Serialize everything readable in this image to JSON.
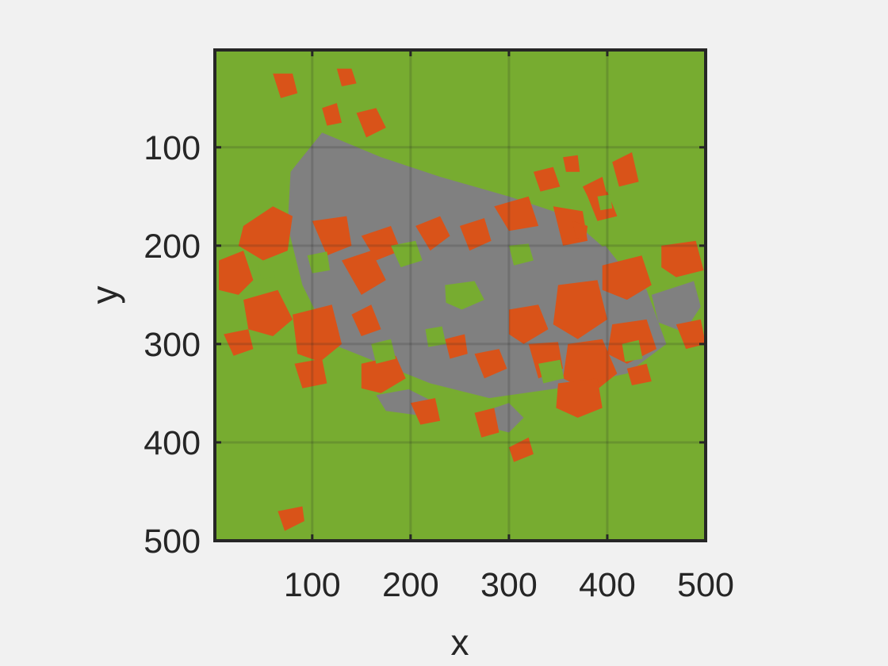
{
  "chart_data": {
    "type": "heatmap",
    "title": "",
    "xlabel": "x",
    "ylabel": "y",
    "xlim": [
      1,
      500
    ],
    "ylim": [
      1,
      500
    ],
    "y_reversed": true,
    "xticks": [
      100,
      200,
      300,
      400,
      500
    ],
    "xtick_labels": [
      "100",
      "200",
      "300",
      "400",
      "500"
    ],
    "yticks": [
      100,
      200,
      300,
      400,
      500
    ],
    "ytick_labels": [
      "100",
      "200",
      "300",
      "400",
      "500"
    ],
    "grid": true,
    "classes": [
      {
        "id": 1,
        "color": "#77ac30"
      },
      {
        "id": 2,
        "color": "#d95319"
      },
      {
        "id": 3,
        "color": "#808080"
      }
    ],
    "background_class": 1,
    "regions": [
      {
        "class": 3,
        "polygon": [
          [
            78,
            125
          ],
          [
            110,
            85
          ],
          [
            170,
            110
          ],
          [
            230,
            130
          ],
          [
            300,
            150
          ],
          [
            360,
            170
          ],
          [
            400,
            205
          ],
          [
            440,
            245
          ],
          [
            460,
            300
          ],
          [
            420,
            330
          ],
          [
            350,
            345
          ],
          [
            280,
            355
          ],
          [
            220,
            340
          ],
          [
            170,
            320
          ],
          [
            120,
            300
          ],
          [
            90,
            240
          ],
          [
            75,
            180
          ]
        ]
      },
      {
        "class": 3,
        "polygon": [
          [
            248,
            230
          ],
          [
            286,
            226
          ],
          [
            306,
            238
          ],
          [
            296,
            252
          ],
          [
            262,
            250
          ]
        ]
      },
      {
        "class": 3,
        "polygon": [
          [
            165,
            352
          ],
          [
            198,
            346
          ],
          [
            222,
            358
          ],
          [
            205,
            372
          ],
          [
            175,
            368
          ]
        ]
      },
      {
        "class": 3,
        "polygon": [
          [
            445,
            250
          ],
          [
            488,
            236
          ],
          [
            495,
            262
          ],
          [
            478,
            288
          ],
          [
            452,
            278
          ]
        ]
      },
      {
        "class": 3,
        "polygon": [
          [
            365,
            210
          ],
          [
            398,
            200
          ],
          [
            410,
            215
          ],
          [
            392,
            228
          ]
        ]
      },
      {
        "class": 3,
        "polygon": [
          [
            270,
            370
          ],
          [
            300,
            360
          ],
          [
            315,
            375
          ],
          [
            300,
            390
          ],
          [
            280,
            385
          ]
        ]
      },
      {
        "class": 2,
        "polygon": [
          [
            30,
            180
          ],
          [
            60,
            160
          ],
          [
            80,
            170
          ],
          [
            75,
            205
          ],
          [
            50,
            215
          ],
          [
            25,
            200
          ]
        ]
      },
      {
        "class": 2,
        "polygon": [
          [
            5,
            215
          ],
          [
            30,
            205
          ],
          [
            40,
            235
          ],
          [
            25,
            250
          ],
          [
            5,
            245
          ]
        ]
      },
      {
        "class": 2,
        "polygon": [
          [
            30,
            255
          ],
          [
            65,
            245
          ],
          [
            80,
            275
          ],
          [
            60,
            292
          ],
          [
            35,
            285
          ]
        ]
      },
      {
        "class": 2,
        "polygon": [
          [
            80,
            270
          ],
          [
            120,
            260
          ],
          [
            130,
            300
          ],
          [
            108,
            318
          ],
          [
            85,
            310
          ]
        ]
      },
      {
        "class": 2,
        "polygon": [
          [
            10,
            290
          ],
          [
            35,
            285
          ],
          [
            40,
            305
          ],
          [
            20,
            312
          ]
        ]
      },
      {
        "class": 2,
        "polygon": [
          [
            82,
            320
          ],
          [
            110,
            315
          ],
          [
            115,
            340
          ],
          [
            90,
            345
          ]
        ]
      },
      {
        "class": 2,
        "polygon": [
          [
            100,
            175
          ],
          [
            135,
            170
          ],
          [
            140,
            200
          ],
          [
            115,
            210
          ]
        ]
      },
      {
        "class": 2,
        "polygon": [
          [
            130,
            215
          ],
          [
            160,
            205
          ],
          [
            175,
            235
          ],
          [
            150,
            250
          ]
        ]
      },
      {
        "class": 2,
        "polygon": [
          [
            150,
            190
          ],
          [
            180,
            180
          ],
          [
            190,
            205
          ],
          [
            165,
            215
          ]
        ]
      },
      {
        "class": 2,
        "polygon": [
          [
            150,
            320
          ],
          [
            185,
            312
          ],
          [
            195,
            335
          ],
          [
            170,
            350
          ],
          [
            150,
            345
          ]
        ]
      },
      {
        "class": 2,
        "polygon": [
          [
            140,
            270
          ],
          [
            160,
            260
          ],
          [
            170,
            285
          ],
          [
            150,
            292
          ]
        ]
      },
      {
        "class": 2,
        "polygon": [
          [
            205,
            180
          ],
          [
            230,
            170
          ],
          [
            240,
            190
          ],
          [
            220,
            205
          ]
        ]
      },
      {
        "class": 2,
        "polygon": [
          [
            250,
            180
          ],
          [
            275,
            172
          ],
          [
            282,
            195
          ],
          [
            260,
            205
          ]
        ]
      },
      {
        "class": 2,
        "polygon": [
          [
            285,
            160
          ],
          [
            320,
            150
          ],
          [
            330,
            180
          ],
          [
            300,
            185
          ]
        ]
      },
      {
        "class": 2,
        "polygon": [
          [
            325,
            125
          ],
          [
            345,
            120
          ],
          [
            352,
            140
          ],
          [
            332,
            145
          ]
        ]
      },
      {
        "class": 2,
        "polygon": [
          [
            345,
            160
          ],
          [
            375,
            165
          ],
          [
            380,
            195
          ],
          [
            355,
            200
          ]
        ]
      },
      {
        "class": 2,
        "polygon": [
          [
            365,
            175
          ],
          [
            380,
            180
          ],
          [
            378,
            195
          ],
          [
            368,
            192
          ]
        ]
      },
      {
        "class": 2,
        "polygon": [
          [
            380,
            150
          ],
          [
            400,
            145
          ],
          [
            410,
            170
          ],
          [
            390,
            175
          ]
        ]
      },
      {
        "class": 2,
        "polygon": [
          [
            405,
            115
          ],
          [
            425,
            105
          ],
          [
            432,
            135
          ],
          [
            412,
            140
          ]
        ]
      },
      {
        "class": 2,
        "polygon": [
          [
            375,
            140
          ],
          [
            395,
            130
          ],
          [
            400,
            150
          ],
          [
            385,
            160
          ]
        ]
      },
      {
        "class": 2,
        "polygon": [
          [
            355,
            110
          ],
          [
            370,
            108
          ],
          [
            372,
            125
          ],
          [
            358,
            125
          ]
        ]
      },
      {
        "class": 2,
        "polygon": [
          [
            395,
            220
          ],
          [
            435,
            210
          ],
          [
            445,
            240
          ],
          [
            420,
            255
          ],
          [
            395,
            245
          ]
        ]
      },
      {
        "class": 2,
        "polygon": [
          [
            350,
            240
          ],
          [
            390,
            235
          ],
          [
            400,
            275
          ],
          [
            370,
            295
          ],
          [
            345,
            280
          ]
        ]
      },
      {
        "class": 2,
        "polygon": [
          [
            360,
            300
          ],
          [
            395,
            295
          ],
          [
            410,
            330
          ],
          [
            385,
            350
          ],
          [
            355,
            335
          ]
        ]
      },
      {
        "class": 2,
        "polygon": [
          [
            405,
            280
          ],
          [
            440,
            275
          ],
          [
            450,
            305
          ],
          [
            420,
            320
          ],
          [
            400,
            310
          ]
        ]
      },
      {
        "class": 2,
        "polygon": [
          [
            455,
            200
          ],
          [
            490,
            195
          ],
          [
            498,
            225
          ],
          [
            470,
            232
          ],
          [
            455,
            222
          ]
        ]
      },
      {
        "class": 2,
        "polygon": [
          [
            470,
            280
          ],
          [
            495,
            275
          ],
          [
            500,
            300
          ],
          [
            480,
            305
          ]
        ]
      },
      {
        "class": 2,
        "polygon": [
          [
            300,
            265
          ],
          [
            330,
            260
          ],
          [
            340,
            285
          ],
          [
            315,
            300
          ],
          [
            300,
            290
          ]
        ]
      },
      {
        "class": 2,
        "polygon": [
          [
            320,
            300
          ],
          [
            350,
            298
          ],
          [
            355,
            325
          ],
          [
            330,
            335
          ]
        ]
      },
      {
        "class": 2,
        "polygon": [
          [
            350,
            340
          ],
          [
            390,
            335
          ],
          [
            395,
            365
          ],
          [
            370,
            375
          ],
          [
            348,
            365
          ]
        ]
      },
      {
        "class": 2,
        "polygon": [
          [
            300,
            405
          ],
          [
            320,
            395
          ],
          [
            325,
            412
          ],
          [
            305,
            420
          ]
        ]
      },
      {
        "class": 2,
        "polygon": [
          [
            265,
            370
          ],
          [
            285,
            365
          ],
          [
            290,
            390
          ],
          [
            272,
            395
          ]
        ]
      },
      {
        "class": 2,
        "polygon": [
          [
            200,
            360
          ],
          [
            225,
            355
          ],
          [
            230,
            378
          ],
          [
            210,
            382
          ]
        ]
      },
      {
        "class": 2,
        "polygon": [
          [
            265,
            310
          ],
          [
            290,
            305
          ],
          [
            298,
            325
          ],
          [
            275,
            335
          ]
        ]
      },
      {
        "class": 2,
        "polygon": [
          [
            235,
            295
          ],
          [
            255,
            290
          ],
          [
            258,
            310
          ],
          [
            240,
            315
          ]
        ]
      },
      {
        "class": 2,
        "polygon": [
          [
            60,
            25
          ],
          [
            80,
            25
          ],
          [
            85,
            45
          ],
          [
            68,
            50
          ]
        ]
      },
      {
        "class": 2,
        "polygon": [
          [
            125,
            20
          ],
          [
            140,
            20
          ],
          [
            145,
            35
          ],
          [
            130,
            38
          ]
        ]
      },
      {
        "class": 2,
        "polygon": [
          [
            65,
            470
          ],
          [
            90,
            465
          ],
          [
            92,
            480
          ],
          [
            72,
            490
          ]
        ]
      },
      {
        "class": 2,
        "polygon": [
          [
            145,
            65
          ],
          [
            165,
            60
          ],
          [
            175,
            80
          ],
          [
            155,
            90
          ]
        ]
      },
      {
        "class": 2,
        "polygon": [
          [
            110,
            60
          ],
          [
            125,
            55
          ],
          [
            130,
            75
          ],
          [
            115,
            78
          ]
        ]
      },
      {
        "class": 2,
        "polygon": [
          [
            420,
            325
          ],
          [
            440,
            320
          ],
          [
            445,
            338
          ],
          [
            425,
            342
          ]
        ]
      },
      {
        "class": 1,
        "polygon": [
          [
            235,
            240
          ],
          [
            265,
            236
          ],
          [
            275,
            255
          ],
          [
            252,
            265
          ],
          [
            236,
            258
          ]
        ]
      },
      {
        "class": 1,
        "polygon": [
          [
            180,
            200
          ],
          [
            205,
            195
          ],
          [
            212,
            215
          ],
          [
            190,
            222
          ]
        ]
      },
      {
        "class": 1,
        "polygon": [
          [
            300,
            200
          ],
          [
            320,
            198
          ],
          [
            325,
            215
          ],
          [
            305,
            220
          ]
        ]
      },
      {
        "class": 1,
        "polygon": [
          [
            160,
            300
          ],
          [
            180,
            295
          ],
          [
            185,
            315
          ],
          [
            165,
            320
          ]
        ]
      },
      {
        "class": 1,
        "polygon": [
          [
            330,
            320
          ],
          [
            352,
            316
          ],
          [
            356,
            335
          ],
          [
            335,
            340
          ]
        ]
      },
      {
        "class": 1,
        "polygon": [
          [
            95,
            210
          ],
          [
            115,
            206
          ],
          [
            118,
            225
          ],
          [
            100,
            228
          ]
        ]
      },
      {
        "class": 1,
        "polygon": [
          [
            215,
            285
          ],
          [
            232,
            282
          ],
          [
            236,
            300
          ],
          [
            218,
            303
          ]
        ]
      },
      {
        "class": 1,
        "polygon": [
          [
            415,
            300
          ],
          [
            432,
            296
          ],
          [
            436,
            315
          ],
          [
            418,
            318
          ]
        ]
      },
      {
        "class": 1,
        "polygon": [
          [
            390,
            150
          ],
          [
            403,
            148
          ],
          [
            405,
            162
          ],
          [
            393,
            164
          ]
        ]
      },
      {
        "class": 1,
        "polygon": [
          [
            45,
            220
          ],
          [
            60,
            218
          ],
          [
            62,
            232
          ],
          [
            48,
            234
          ]
        ]
      }
    ]
  }
}
